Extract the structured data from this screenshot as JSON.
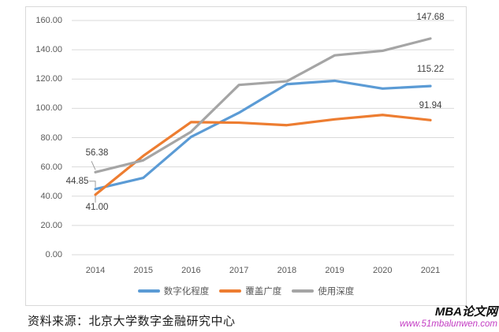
{
  "chart_data": {
    "type": "line",
    "title": "",
    "categories": [
      "2014",
      "2015",
      "2016",
      "2017",
      "2018",
      "2019",
      "2020",
      "2021"
    ],
    "series": [
      {
        "name": "数字化程度",
        "color": "#5B9BD5",
        "values": [
          44.85,
          52.5,
          80.5,
          97.0,
          116.5,
          118.8,
          113.5,
          115.22
        ]
      },
      {
        "name": "覆盖广度",
        "color": "#ED7D31",
        "values": [
          41.0,
          67.5,
          90.6,
          90.2,
          88.5,
          92.5,
          95.5,
          91.94
        ]
      },
      {
        "name": "使用深度",
        "color": "#A5A5A5",
        "values": [
          56.38,
          64.5,
          84.0,
          116.0,
          118.5,
          136.2,
          139.3,
          147.68
        ]
      }
    ],
    "ylim": [
      0,
      160
    ],
    "ytick_step": 20,
    "ytick_format": "0.00",
    "grid": "horizontal",
    "gridline_color": "#d9d9d9",
    "legend_position": "bottom",
    "annotations": [
      {
        "series": 0,
        "x": "2014",
        "text": "44.85"
      },
      {
        "series": 1,
        "x": "2014",
        "text": "41.00"
      },
      {
        "series": 2,
        "x": "2014",
        "text": "56.38"
      },
      {
        "series": 0,
        "x": "2021",
        "text": "115.22"
      },
      {
        "series": 1,
        "x": "2021",
        "text": "91.94"
      },
      {
        "series": 2,
        "x": "2021",
        "text": "147.68"
      }
    ]
  },
  "footer": {
    "source": "资料来源：北京大学数字金融研究中心"
  },
  "watermark": {
    "title": "MBA论文网",
    "url": "www.51mbalunwen.com",
    "url_color": "#c33bc3"
  }
}
